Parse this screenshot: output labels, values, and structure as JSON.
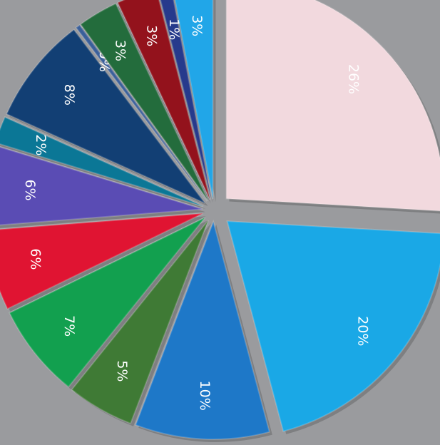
{
  "chart_data": {
    "type": "pie",
    "exploded": true,
    "label_rotation_deg": 90,
    "slices": [
      {
        "label": "26%",
        "value": 26,
        "color": "#f2d9de"
      },
      {
        "label": "20%",
        "value": 20,
        "color": "#1aa8e6"
      },
      {
        "label": "10%",
        "value": 10,
        "color": "#1e78c8"
      },
      {
        "label": "5%",
        "value": 5,
        "color": "#3f7a35"
      },
      {
        "label": "7%",
        "value": 7,
        "color": "#12a04f"
      },
      {
        "label": "6%",
        "value": 6,
        "color": "#e01432"
      },
      {
        "label": "6%",
        "value": 6,
        "color": "#5a4cb4"
      },
      {
        "label": "2%",
        "value": 2,
        "color": "#0b7796"
      },
      {
        "label": "8%",
        "value": 8,
        "color": "#123f74"
      },
      {
        "label": "0%",
        "value": 0,
        "color": "#3a5f9a"
      },
      {
        "label": "3%",
        "value": 3,
        "color": "#236c3c"
      },
      {
        "label": "3%",
        "value": 3,
        "color": "#93121c"
      },
      {
        "label": "1%",
        "value": 1,
        "color": "#263a8c"
      },
      {
        "label": "3%",
        "value": 3,
        "color": "#21a6e8"
      }
    ]
  }
}
